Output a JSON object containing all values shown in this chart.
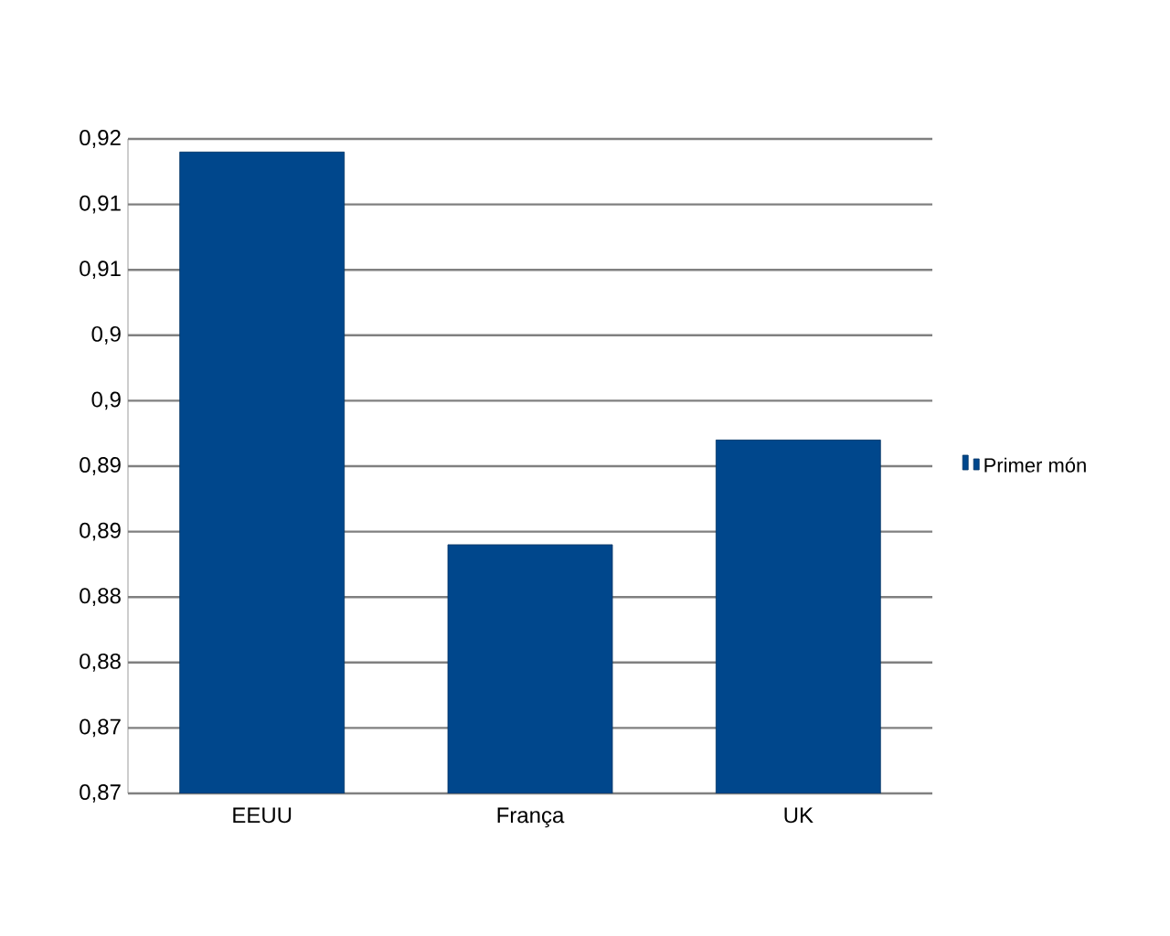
{
  "chart_data": {
    "type": "bar",
    "categories": [
      "EEUU",
      "França",
      "UK"
    ],
    "series": [
      {
        "name": "Primer món",
        "color": "#00478c",
        "values": [
          0.919,
          0.889,
          0.897
        ]
      }
    ],
    "ylim": [
      0.87,
      0.92
    ],
    "yticks": [
      {
        "value": 0.87,
        "label": "0,87"
      },
      {
        "value": 0.875,
        "label": "0,87"
      },
      {
        "value": 0.88,
        "label": "0,88"
      },
      {
        "value": 0.885,
        "label": "0,88"
      },
      {
        "value": 0.89,
        "label": "0,89"
      },
      {
        "value": 0.895,
        "label": "0,89"
      },
      {
        "value": 0.9,
        "label": "0,9"
      },
      {
        "value": 0.905,
        "label": "0,9"
      },
      {
        "value": 0.91,
        "label": "0,91"
      },
      {
        "value": 0.915,
        "label": "0,91"
      },
      {
        "value": 0.92,
        "label": "0,92"
      }
    ],
    "grid": "y",
    "legend": "right"
  }
}
